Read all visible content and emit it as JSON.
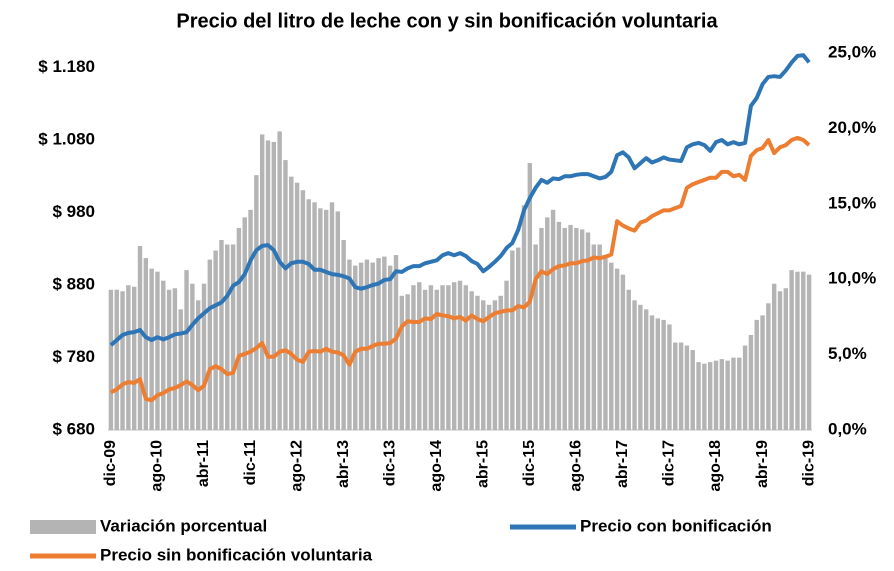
{
  "chart_data": {
    "type": "combo",
    "title": "Precio del litro de leche con y sin bonificación voluntaria",
    "categories": [
      "dic-09",
      null,
      null,
      null,
      null,
      null,
      null,
      null,
      "ago-10",
      null,
      null,
      null,
      null,
      null,
      null,
      null,
      "abr-11",
      null,
      null,
      null,
      null,
      null,
      null,
      null,
      "dic-11",
      null,
      null,
      null,
      null,
      null,
      null,
      null,
      "ago-12",
      null,
      null,
      null,
      null,
      null,
      null,
      null,
      "abr-13",
      null,
      null,
      null,
      null,
      null,
      null,
      null,
      "dic-13",
      null,
      null,
      null,
      null,
      null,
      null,
      null,
      "ago-14",
      null,
      null,
      null,
      null,
      null,
      null,
      null,
      "abr-15",
      null,
      null,
      null,
      null,
      null,
      null,
      null,
      "dic-15",
      null,
      null,
      null,
      null,
      null,
      null,
      null,
      "ago-16",
      null,
      null,
      null,
      null,
      null,
      null,
      null,
      "abr-17",
      null,
      null,
      null,
      null,
      null,
      null,
      null,
      "dic-17",
      null,
      null,
      null,
      null,
      null,
      null,
      null,
      "ago-18",
      null,
      null,
      null,
      null,
      null,
      null,
      null,
      "abr-19",
      null,
      null,
      null,
      null,
      null,
      null,
      null,
      "dic-19"
    ],
    "ylim": [
      680,
      1200
    ],
    "yticks": [
      {
        "value": 680,
        "label": "$ 680"
      },
      {
        "value": 780,
        "label": "$ 780"
      },
      {
        "value": 880,
        "label": "$ 880"
      },
      {
        "value": 980,
        "label": "$ 980"
      },
      {
        "value": 1080,
        "label": "$ 1.080"
      },
      {
        "value": 1180,
        "label": "$ 1.180"
      }
    ],
    "y2lim": [
      0,
      25
    ],
    "y2ticks": [
      {
        "value": 0,
        "label": "0,0%"
      },
      {
        "value": 5,
        "label": "5,0%"
      },
      {
        "value": 10,
        "label": "10,0%"
      },
      {
        "value": 15,
        "label": "15,0%"
      },
      {
        "value": 20,
        "label": "20,0%"
      },
      {
        "value": 25,
        "label": "25,0%"
      }
    ],
    "series": [
      {
        "name": "Variación porcentual",
        "type": "bar",
        "axis": "y2",
        "color": "#b4b4b4",
        "values": [
          9.3,
          9.3,
          9.2,
          9.6,
          9.5,
          12.2,
          11.4,
          10.7,
          10.5,
          9.9,
          9.3,
          9.4,
          8.0,
          10.6,
          9.7,
          8.6,
          9.7,
          11.3,
          11.9,
          12.6,
          12.3,
          12.3,
          13.4,
          14.1,
          14.6,
          16.9,
          19.6,
          19.2,
          19.1,
          19.8,
          17.9,
          16.8,
          16.4,
          15.9,
          15.3,
          15.1,
          14.7,
          14.6,
          15.1,
          14.5,
          12.6,
          11.3,
          10.9,
          11.1,
          11.3,
          11.1,
          11.4,
          11.5,
          10.9,
          11.6,
          8.9,
          9.0,
          9.6,
          9.8,
          9.3,
          9.6,
          9.3,
          9.6,
          9.6,
          9.8,
          9.9,
          9.6,
          9.2,
          8.9,
          8.6,
          8.3,
          8.6,
          8.9,
          9.9,
          11.9,
          12.1,
          14.9,
          17.7,
          12.3,
          13.4,
          14.1,
          14.6,
          13.8,
          13.4,
          13.6,
          13.4,
          13.3,
          13.1,
          12.3,
          12.3,
          11.4,
          11.1,
          10.7,
          10.3,
          9.3,
          8.6,
          8.3,
          8.0,
          7.6,
          7.4,
          7.3,
          7.0,
          5.8,
          5.8,
          5.6,
          5.3,
          4.5,
          4.4,
          4.5,
          4.6,
          4.7,
          4.6,
          4.8,
          4.8,
          5.6,
          6.3,
          7.3,
          7.6,
          8.4,
          9.7,
          9.2,
          9.4,
          10.6,
          10.5,
          10.5,
          10.3
        ]
      },
      {
        "name": "Precio con bonificación",
        "type": "line",
        "color": "#2e75b6",
        "values": [
          797,
          804,
          811,
          814,
          815,
          818,
          808,
          804,
          808,
          805,
          808,
          812,
          813,
          815,
          825,
          834,
          841,
          848,
          852,
          856,
          865,
          879,
          884,
          895,
          914,
          928,
          934,
          935,
          928,
          912,
          903,
          910,
          912,
          912,
          909,
          901,
          901,
          898,
          895,
          894,
          892,
          889,
          877,
          875,
          877,
          880,
          882,
          887,
          888,
          899,
          898,
          903,
          906,
          906,
          910,
          912,
          914,
          921,
          924,
          921,
          924,
          920,
          913,
          909,
          899,
          905,
          912,
          920,
          931,
          938,
          956,
          983,
          1000,
          1014,
          1025,
          1021,
          1027,
          1026,
          1030,
          1030,
          1032,
          1033,
          1033,
          1030,
          1027,
          1029,
          1036,
          1059,
          1063,
          1056,
          1041,
          1048,
          1055,
          1049,
          1052,
          1056,
          1053,
          1052,
          1051,
          1070,
          1074,
          1076,
          1073,
          1065,
          1077,
          1080,
          1074,
          1077,
          1074,
          1076,
          1127,
          1138,
          1157,
          1167,
          1168,
          1167,
          1176,
          1187,
          1196,
          1197,
          1187
        ]
      },
      {
        "name": "Precio sin bonificación voluntaria",
        "type": "line",
        "color": "#ed7d31",
        "values": [
          732,
          736,
          743,
          746,
          745,
          750,
          723,
          721,
          728,
          731,
          736,
          738,
          742,
          747,
          742,
          735,
          741,
          764,
          768,
          764,
          757,
          759,
          782,
          785,
          788,
          793,
          800,
          781,
          781,
          788,
          790,
          785,
          777,
          774,
          788,
          789,
          788,
          792,
          788,
          787,
          783,
          770,
          788,
          792,
          792,
          796,
          799,
          799,
          800,
          806,
          823,
          830,
          829,
          829,
          834,
          833,
          840,
          838,
          837,
          834,
          836,
          831,
          838,
          833,
          830,
          836,
          841,
          843,
          845,
          845,
          851,
          849,
          857,
          888,
          899,
          895,
          902,
          906,
          907,
          910,
          910,
          913,
          914,
          918,
          917,
          919,
          922,
          968,
          962,
          958,
          955,
          966,
          969,
          975,
          979,
          983,
          983,
          986,
          989,
          1014,
          1019,
          1022,
          1025,
          1028,
          1028,
          1036,
          1036,
          1030,
          1032,
          1025,
          1058,
          1066,
          1069,
          1080,
          1062,
          1070,
          1073,
          1080,
          1083,
          1080,
          1073
        ]
      }
    ]
  }
}
